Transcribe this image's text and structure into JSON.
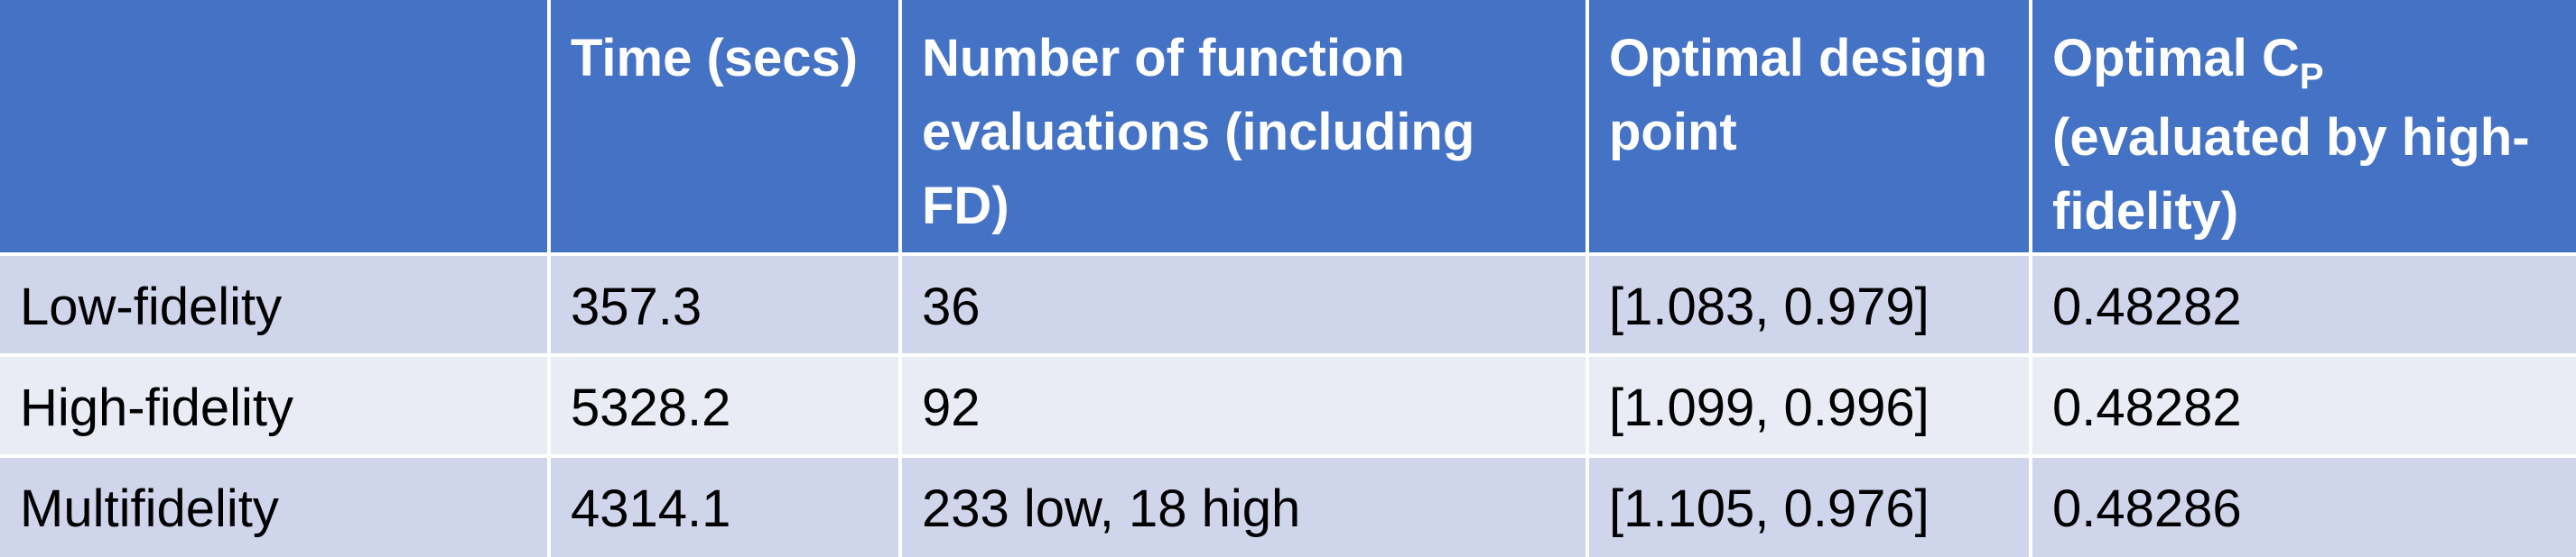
{
  "table": {
    "header": {
      "blank": "",
      "time": "Time (secs)",
      "evals": "Number of function evaluations (including FD)",
      "design": "Optimal design point",
      "cp_main": "Optimal C",
      "cp_sub": "P",
      "cp_rest": "(evaluated by high-fidelity)"
    },
    "rows": [
      {
        "method": "Low-fidelity",
        "time": "357.3",
        "evals": "36",
        "design": "[1.083, 0.979]",
        "cp": "0.48282"
      },
      {
        "method": "High-fidelity",
        "time": "5328.2",
        "evals": "92",
        "design": "[1.099, 0.996]",
        "cp": "0.48282"
      },
      {
        "method": "Multifidelity",
        "time": "4314.1",
        "evals": "233 low, 18 high",
        "design": "[1.105, 0.976]",
        "cp": "0.48286"
      }
    ],
    "colors": {
      "header_bg": "#4472c4",
      "row_odd_bg": "#cfd5ea",
      "row_even_bg": "#e9ebf5",
      "border": "#ffffff"
    }
  }
}
